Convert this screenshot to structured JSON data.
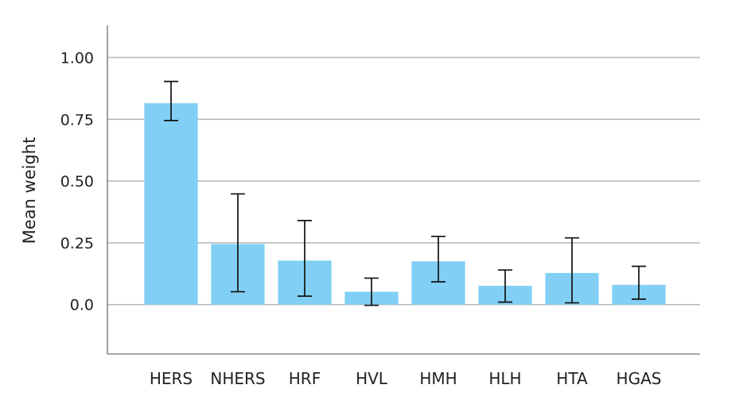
{
  "chart_data": {
    "type": "bar",
    "ylabel": "Mean weight",
    "xlabel": "",
    "title": "",
    "categories": [
      "HERS",
      "NHERS",
      "HRF",
      "HVL",
      "HMH",
      "HLH",
      "HTA",
      "HGAS"
    ],
    "values": [
      0.815,
      0.245,
      0.178,
      0.052,
      0.175,
      0.076,
      0.128,
      0.08
    ],
    "error_low": [
      0.745,
      0.052,
      0.034,
      -0.003,
      0.092,
      0.01,
      0.007,
      0.022
    ],
    "error_high": [
      0.903,
      0.448,
      0.34,
      0.107,
      0.276,
      0.14,
      0.27,
      0.155
    ],
    "yticks": [
      0.0,
      0.25,
      0.5,
      0.75,
      1.0
    ],
    "ytick_labels": [
      "0.0",
      "0.25",
      "0.50",
      "0.75",
      "1.00"
    ],
    "ylim": [
      -0.2,
      1.13
    ],
    "grid": true,
    "bar_color": "#81cff5",
    "error_bar_color": "#111111"
  }
}
